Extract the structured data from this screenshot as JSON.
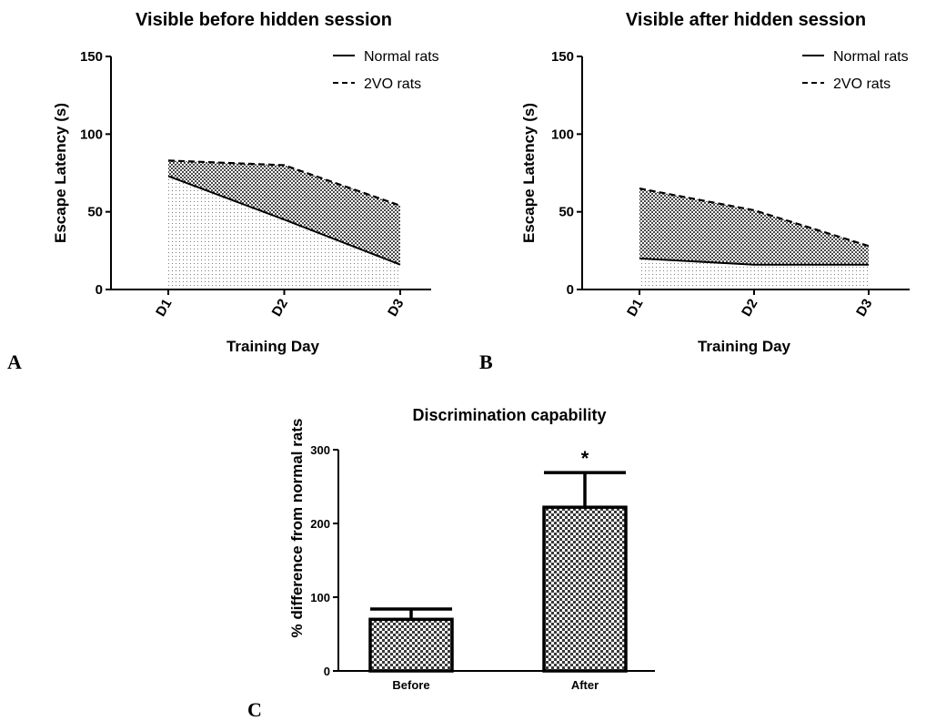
{
  "chart_data": [
    {
      "panel": "A",
      "type": "area",
      "title": "Visible before hidden session",
      "xlabel": "Training  Day",
      "ylabel": "Escape Latency (s)",
      "categories": [
        "D1",
        "D2",
        "D3"
      ],
      "ylim": [
        0,
        150
      ],
      "yticks": [
        0,
        50,
        100,
        150
      ],
      "legend_position": "top-right",
      "series": [
        {
          "name": "Normal rats",
          "line": "solid",
          "values": [
            73,
            45,
            16
          ]
        },
        {
          "name": "2VO rats",
          "line": "dashed",
          "values": [
            83,
            80,
            54
          ]
        }
      ]
    },
    {
      "panel": "B",
      "type": "area",
      "title": "Visible after hidden session",
      "xlabel": "Training  Day",
      "ylabel": "Escape Latency (s)",
      "categories": [
        "D1",
        "D2",
        "D3"
      ],
      "ylim": [
        0,
        150
      ],
      "yticks": [
        0,
        50,
        100,
        150
      ],
      "legend_position": "top-right",
      "series": [
        {
          "name": "Normal rats",
          "line": "solid",
          "values": [
            20,
            16,
            16
          ]
        },
        {
          "name": "2VO rats",
          "line": "dashed",
          "values": [
            65,
            51,
            28
          ]
        }
      ]
    },
    {
      "panel": "C",
      "type": "bar",
      "title": "Discrimination capability",
      "xlabel": "",
      "ylabel": "% difference from normal rats",
      "categories": [
        "Before",
        "After"
      ],
      "values": [
        70,
        222
      ],
      "errors": [
        14,
        47
      ],
      "annotations": [
        "",
        "*"
      ],
      "ylim": [
        0,
        300
      ],
      "yticks": [
        0,
        100,
        200,
        300
      ]
    }
  ]
}
